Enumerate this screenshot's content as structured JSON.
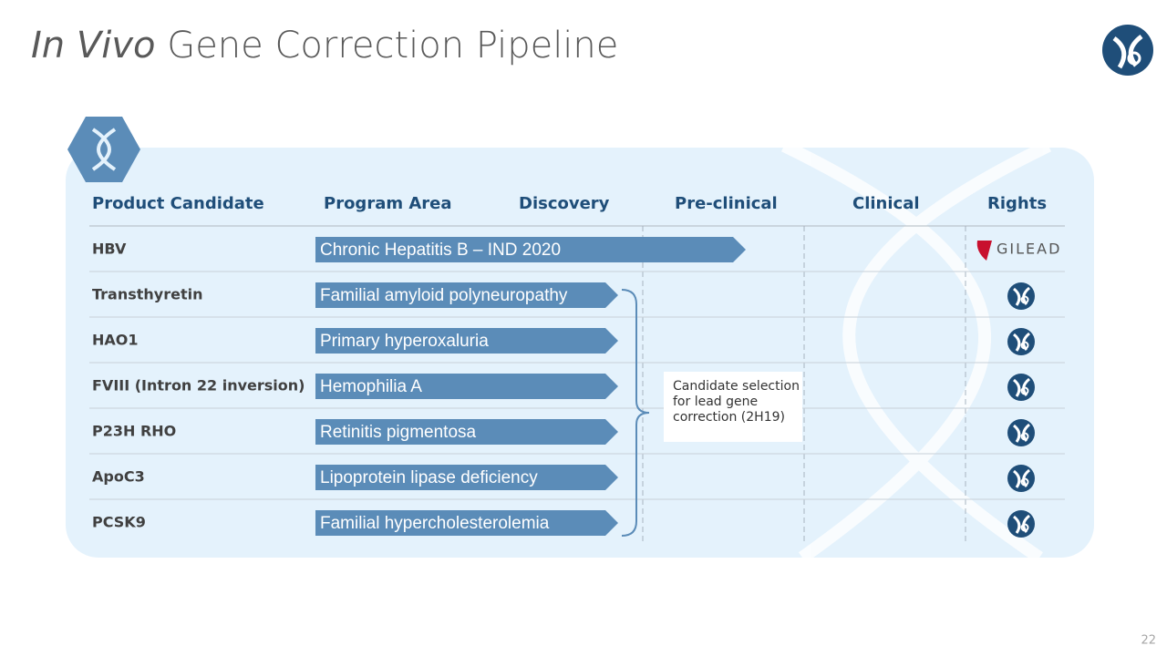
{
  "header": {
    "title_italic": "In Vivo",
    "title_rest": "Gene Correction Pipeline"
  },
  "table": {
    "columns": [
      "Product Candidate",
      "Program Area",
      "Discovery",
      "Pre-clinical",
      "Clinical",
      "Rights"
    ],
    "rows": [
      {
        "candidate": "HBV",
        "program": "Chronic Hepatitis B – IND 2020",
        "rights": "GILEAD"
      },
      {
        "candidate": "Transthyretin",
        "program": "Familial amyloid polyneuropathy"
      },
      {
        "candidate": "HAO1",
        "program": "Primary hyperoxaluria"
      },
      {
        "candidate": "FVIII (Intron 22 inversion)",
        "program": "Hemophilia A"
      },
      {
        "candidate": "P23H RHO",
        "program": "Retinitis pigmentosa"
      },
      {
        "candidate": "ApoC3",
        "program": "Lipoprotein lipase deficiency"
      },
      {
        "candidate": "PCSK9",
        "program": "Familial hypercholesterolemia"
      }
    ]
  },
  "note": "Candidate selection for lead gene correction (2H19)",
  "page_number": "22"
}
